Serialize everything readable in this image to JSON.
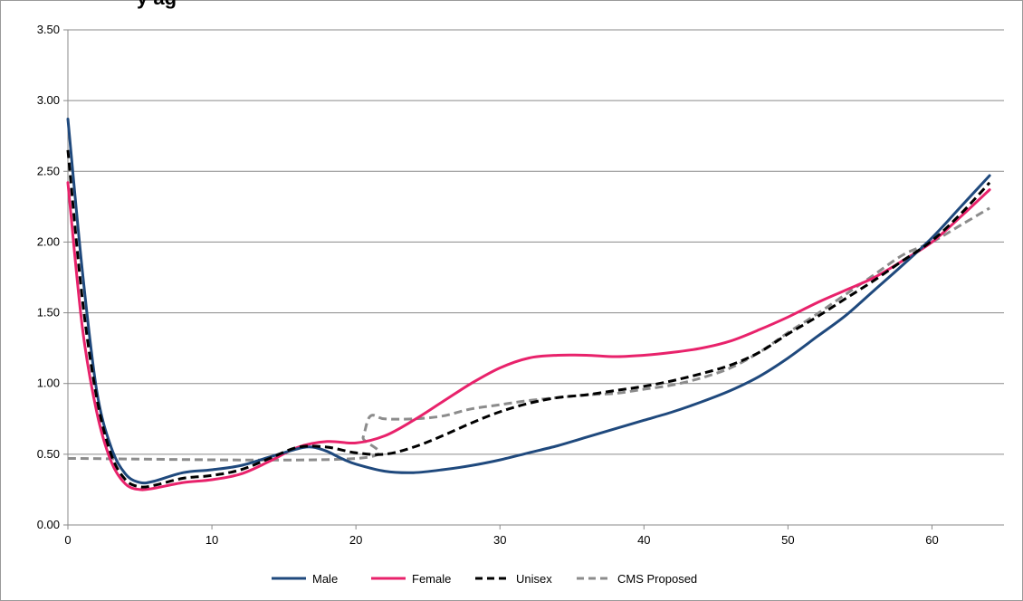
{
  "chart_data": {
    "type": "line",
    "title": "",
    "title_fragment": "y ag",
    "xlabel": "",
    "ylabel": "",
    "xlim": [
      0,
      65
    ],
    "ylim": [
      0,
      3.5
    ],
    "x_ticks": [
      0,
      10,
      20,
      30,
      40,
      50,
      60
    ],
    "y_ticks": [
      "0.00",
      "0.50",
      "1.00",
      "1.50",
      "2.00",
      "2.50",
      "3.00",
      "3.50"
    ],
    "grid": "horizontal",
    "legend_position": "bottom",
    "series": [
      {
        "name": "Male",
        "color": "#1f497d",
        "style": "solid",
        "points": [
          [
            0,
            2.87
          ],
          [
            1,
            1.8
          ],
          [
            2,
            0.95
          ],
          [
            3,
            0.55
          ],
          [
            4,
            0.36
          ],
          [
            5,
            0.3
          ],
          [
            6,
            0.31
          ],
          [
            8,
            0.37
          ],
          [
            10,
            0.39
          ],
          [
            12,
            0.42
          ],
          [
            14,
            0.48
          ],
          [
            16,
            0.54
          ],
          [
            17,
            0.55
          ],
          [
            18,
            0.52
          ],
          [
            19,
            0.47
          ],
          [
            20,
            0.43
          ],
          [
            22,
            0.38
          ],
          [
            24,
            0.37
          ],
          [
            26,
            0.39
          ],
          [
            28,
            0.42
          ],
          [
            30,
            0.46
          ],
          [
            32,
            0.51
          ],
          [
            34,
            0.56
          ],
          [
            36,
            0.62
          ],
          [
            38,
            0.68
          ],
          [
            40,
            0.74
          ],
          [
            42,
            0.8
          ],
          [
            44,
            0.87
          ],
          [
            46,
            0.95
          ],
          [
            48,
            1.05
          ],
          [
            50,
            1.18
          ],
          [
            52,
            1.33
          ],
          [
            54,
            1.48
          ],
          [
            56,
            1.66
          ],
          [
            58,
            1.84
          ],
          [
            60,
            2.03
          ],
          [
            62,
            2.25
          ],
          [
            64,
            2.47
          ]
        ]
      },
      {
        "name": "Female",
        "color": "#e8226b",
        "style": "solid",
        "points": [
          [
            0,
            2.42
          ],
          [
            1,
            1.4
          ],
          [
            2,
            0.8
          ],
          [
            3,
            0.45
          ],
          [
            4,
            0.29
          ],
          [
            5,
            0.25
          ],
          [
            6,
            0.26
          ],
          [
            8,
            0.3
          ],
          [
            10,
            0.32
          ],
          [
            12,
            0.36
          ],
          [
            14,
            0.45
          ],
          [
            16,
            0.55
          ],
          [
            18,
            0.59
          ],
          [
            20,
            0.58
          ],
          [
            22,
            0.63
          ],
          [
            24,
            0.74
          ],
          [
            26,
            0.87
          ],
          [
            28,
            1.0
          ],
          [
            30,
            1.11
          ],
          [
            32,
            1.18
          ],
          [
            34,
            1.2
          ],
          [
            36,
            1.2
          ],
          [
            38,
            1.19
          ],
          [
            40,
            1.2
          ],
          [
            42,
            1.22
          ],
          [
            44,
            1.25
          ],
          [
            46,
            1.3
          ],
          [
            48,
            1.38
          ],
          [
            50,
            1.47
          ],
          [
            52,
            1.57
          ],
          [
            54,
            1.66
          ],
          [
            56,
            1.75
          ],
          [
            58,
            1.87
          ],
          [
            60,
            2.0
          ],
          [
            62,
            2.18
          ],
          [
            64,
            2.37
          ]
        ]
      },
      {
        "name": "Unisex",
        "color": "#000000",
        "style": "dashed",
        "points": [
          [
            0,
            2.65
          ],
          [
            1,
            1.6
          ],
          [
            2,
            0.9
          ],
          [
            3,
            0.5
          ],
          [
            4,
            0.32
          ],
          [
            5,
            0.27
          ],
          [
            6,
            0.28
          ],
          [
            8,
            0.33
          ],
          [
            10,
            0.35
          ],
          [
            12,
            0.39
          ],
          [
            14,
            0.47
          ],
          [
            16,
            0.55
          ],
          [
            18,
            0.55
          ],
          [
            20,
            0.51
          ],
          [
            22,
            0.5
          ],
          [
            24,
            0.55
          ],
          [
            26,
            0.63
          ],
          [
            28,
            0.72
          ],
          [
            30,
            0.8
          ],
          [
            32,
            0.86
          ],
          [
            34,
            0.9
          ],
          [
            36,
            0.92
          ],
          [
            38,
            0.95
          ],
          [
            40,
            0.98
          ],
          [
            42,
            1.02
          ],
          [
            44,
            1.07
          ],
          [
            46,
            1.13
          ],
          [
            48,
            1.22
          ],
          [
            50,
            1.35
          ],
          [
            52,
            1.47
          ],
          [
            54,
            1.6
          ],
          [
            56,
            1.73
          ],
          [
            58,
            1.87
          ],
          [
            60,
            2.01
          ],
          [
            62,
            2.2
          ],
          [
            64,
            2.42
          ]
        ]
      },
      {
        "name": "CMS Proposed",
        "color": "#8c8c8c",
        "style": "dashed",
        "points": [
          [
            0,
            0.47
          ],
          [
            20,
            0.47
          ],
          [
            20.5,
            0.62
          ],
          [
            21,
            0.77
          ],
          [
            22,
            0.75
          ],
          [
            24,
            0.75
          ],
          [
            26,
            0.77
          ],
          [
            28,
            0.82
          ],
          [
            30,
            0.85
          ],
          [
            32,
            0.88
          ],
          [
            34,
            0.9
          ],
          [
            36,
            0.92
          ],
          [
            38,
            0.93
          ],
          [
            40,
            0.96
          ],
          [
            42,
            0.99
          ],
          [
            44,
            1.04
          ],
          [
            46,
            1.11
          ],
          [
            48,
            1.22
          ],
          [
            50,
            1.36
          ],
          [
            52,
            1.49
          ],
          [
            54,
            1.63
          ],
          [
            56,
            1.77
          ],
          [
            58,
            1.91
          ],
          [
            60,
            2.0
          ],
          [
            62,
            2.12
          ],
          [
            64,
            2.24
          ]
        ]
      }
    ]
  }
}
